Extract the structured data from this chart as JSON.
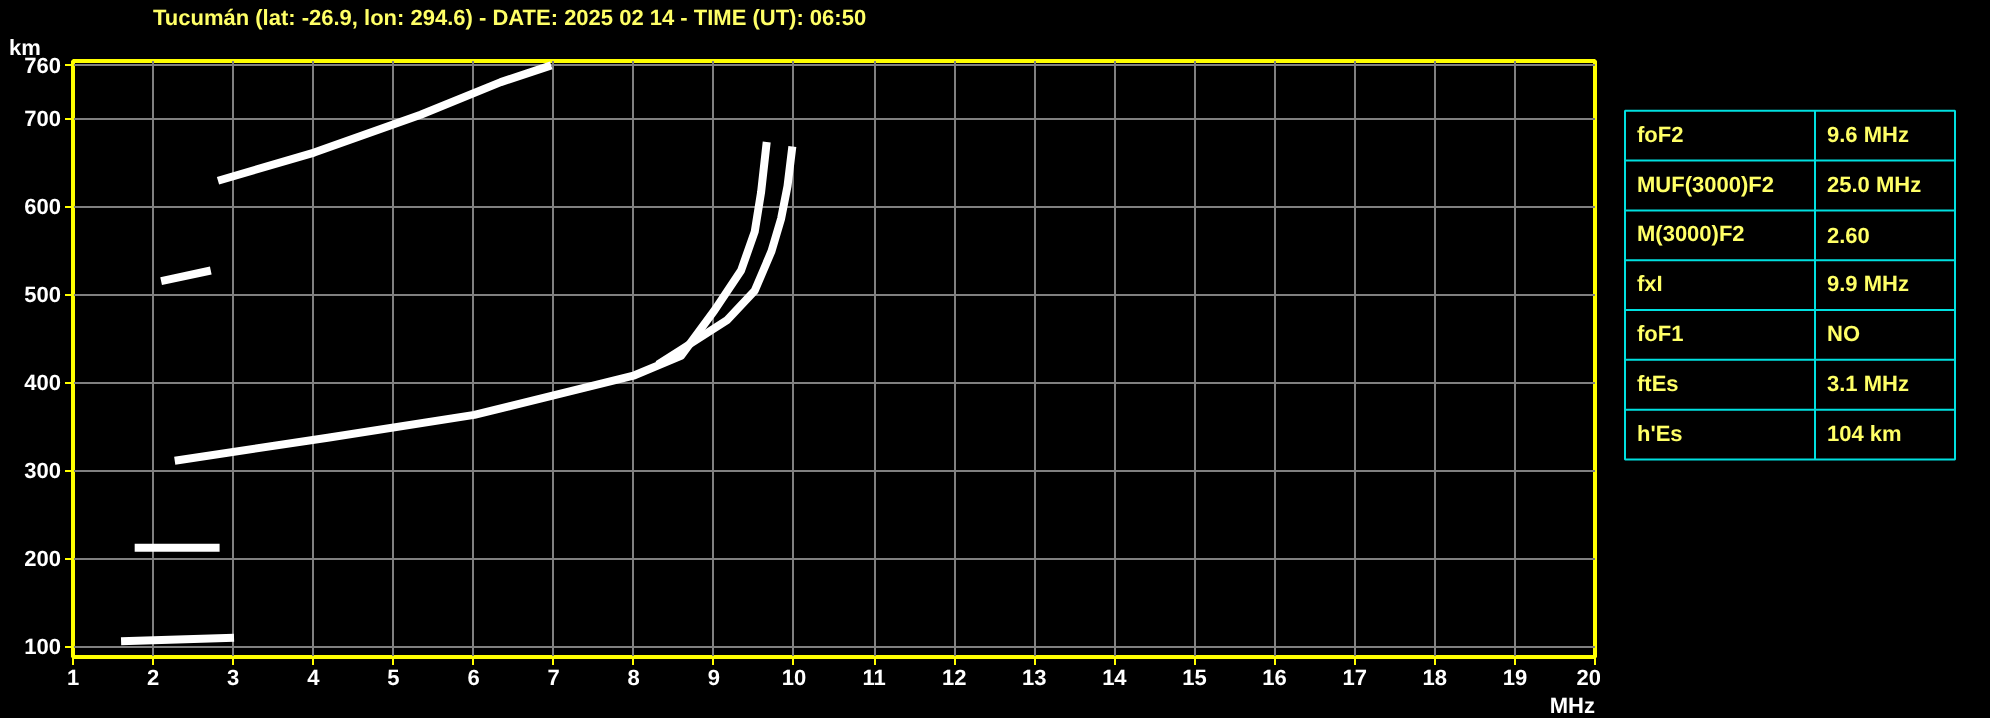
{
  "chart_data": [
    {
      "type": "line",
      "title": "Tucumán (lat: -26.9, lon: 294.6) - DATE: 2025 02 14 - TIME (UT): 06:50",
      "xlabel": "MHz",
      "ylabel": "km",
      "xlim": [
        1,
        20
      ],
      "xticks": [
        1,
        2,
        3,
        4,
        5,
        6,
        7,
        8,
        9,
        10,
        11,
        12,
        13,
        14,
        15,
        16,
        17,
        18,
        19,
        20
      ],
      "ylim": [
        88,
        765
      ],
      "yticks": [
        100,
        200,
        300,
        400,
        500,
        600,
        700,
        760
      ],
      "grid": true,
      "line_style": "solid",
      "marker": "none",
      "series": [
        {
          "color": "#ffffff",
          "x": [
            2.27,
            4.18,
            6.01,
            8.01,
            8.59,
            9.01,
            9.34,
            9.51,
            9.59,
            9.66
          ],
          "values": [
            311,
            337,
            363,
            408,
            430,
            482,
            527,
            571,
            616,
            673
          ]
        },
        {
          "color": "#ffffff",
          "x": [
            8.3,
            8.59,
            9.17,
            9.51,
            9.72,
            9.84,
            9.92,
            9.98
          ],
          "values": [
            420,
            437,
            471,
            504,
            549,
            586,
            623,
            668
          ]
        },
        {
          "color": "#ffffff",
          "x": [
            2.81,
            4.01,
            5.34,
            6.34,
            6.97
          ],
          "values": [
            629,
            661,
            704,
            741,
            760
          ]
        },
        {
          "color": "#ffffff",
          "x": [
            2.1,
            2.72
          ],
          "values": [
            515,
            527
          ]
        },
        {
          "color": "#ffffff",
          "x": [
            1.77,
            2.83
          ],
          "values": [
            212,
            212
          ]
        },
        {
          "color": "#ffffff",
          "x": [
            1.6,
            3.01
          ],
          "values": [
            106,
            110
          ]
        }
      ]
    },
    {
      "type": "other",
      "annotations": [
        "foF2",
        "9.6 MHz",
        "MUF(3000)F2",
        "25.0 MHz",
        "M(3000)F2",
        "2.60",
        "fxI",
        "9.9 MHz",
        "foF1",
        "NO",
        "ftEs",
        "3.1 MHz",
        "h'Es",
        "104 km"
      ]
    }
  ]
}
